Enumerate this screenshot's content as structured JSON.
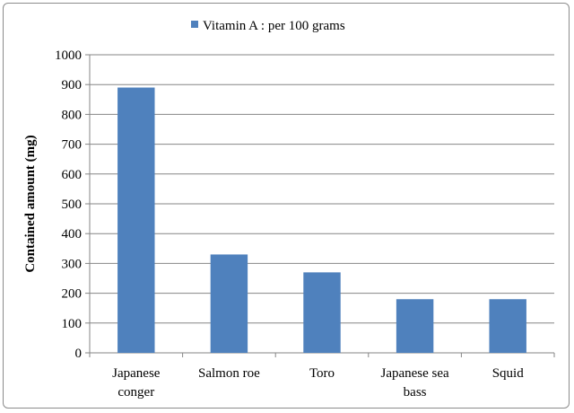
{
  "chart_data": {
    "type": "bar",
    "title": "",
    "xlabel": "",
    "ylabel": "Contained amount (mg)",
    "legend": {
      "position": "top",
      "entries": [
        "Vitamin A : per 100 grams"
      ]
    },
    "categories": [
      [
        "Japanese",
        "conger"
      ],
      [
        "Salmon roe"
      ],
      [
        "Toro"
      ],
      [
        "Japanese sea",
        "bass"
      ],
      [
        "Squid"
      ]
    ],
    "series": [
      {
        "name": "Vitamin A : per 100 grams",
        "values": [
          890,
          330,
          270,
          180,
          180
        ],
        "color": "#4f81bd"
      }
    ],
    "ylim": [
      0,
      1000
    ],
    "yticks": [
      0,
      100,
      200,
      300,
      400,
      500,
      600,
      700,
      800,
      900,
      1000
    ],
    "grid": true
  }
}
